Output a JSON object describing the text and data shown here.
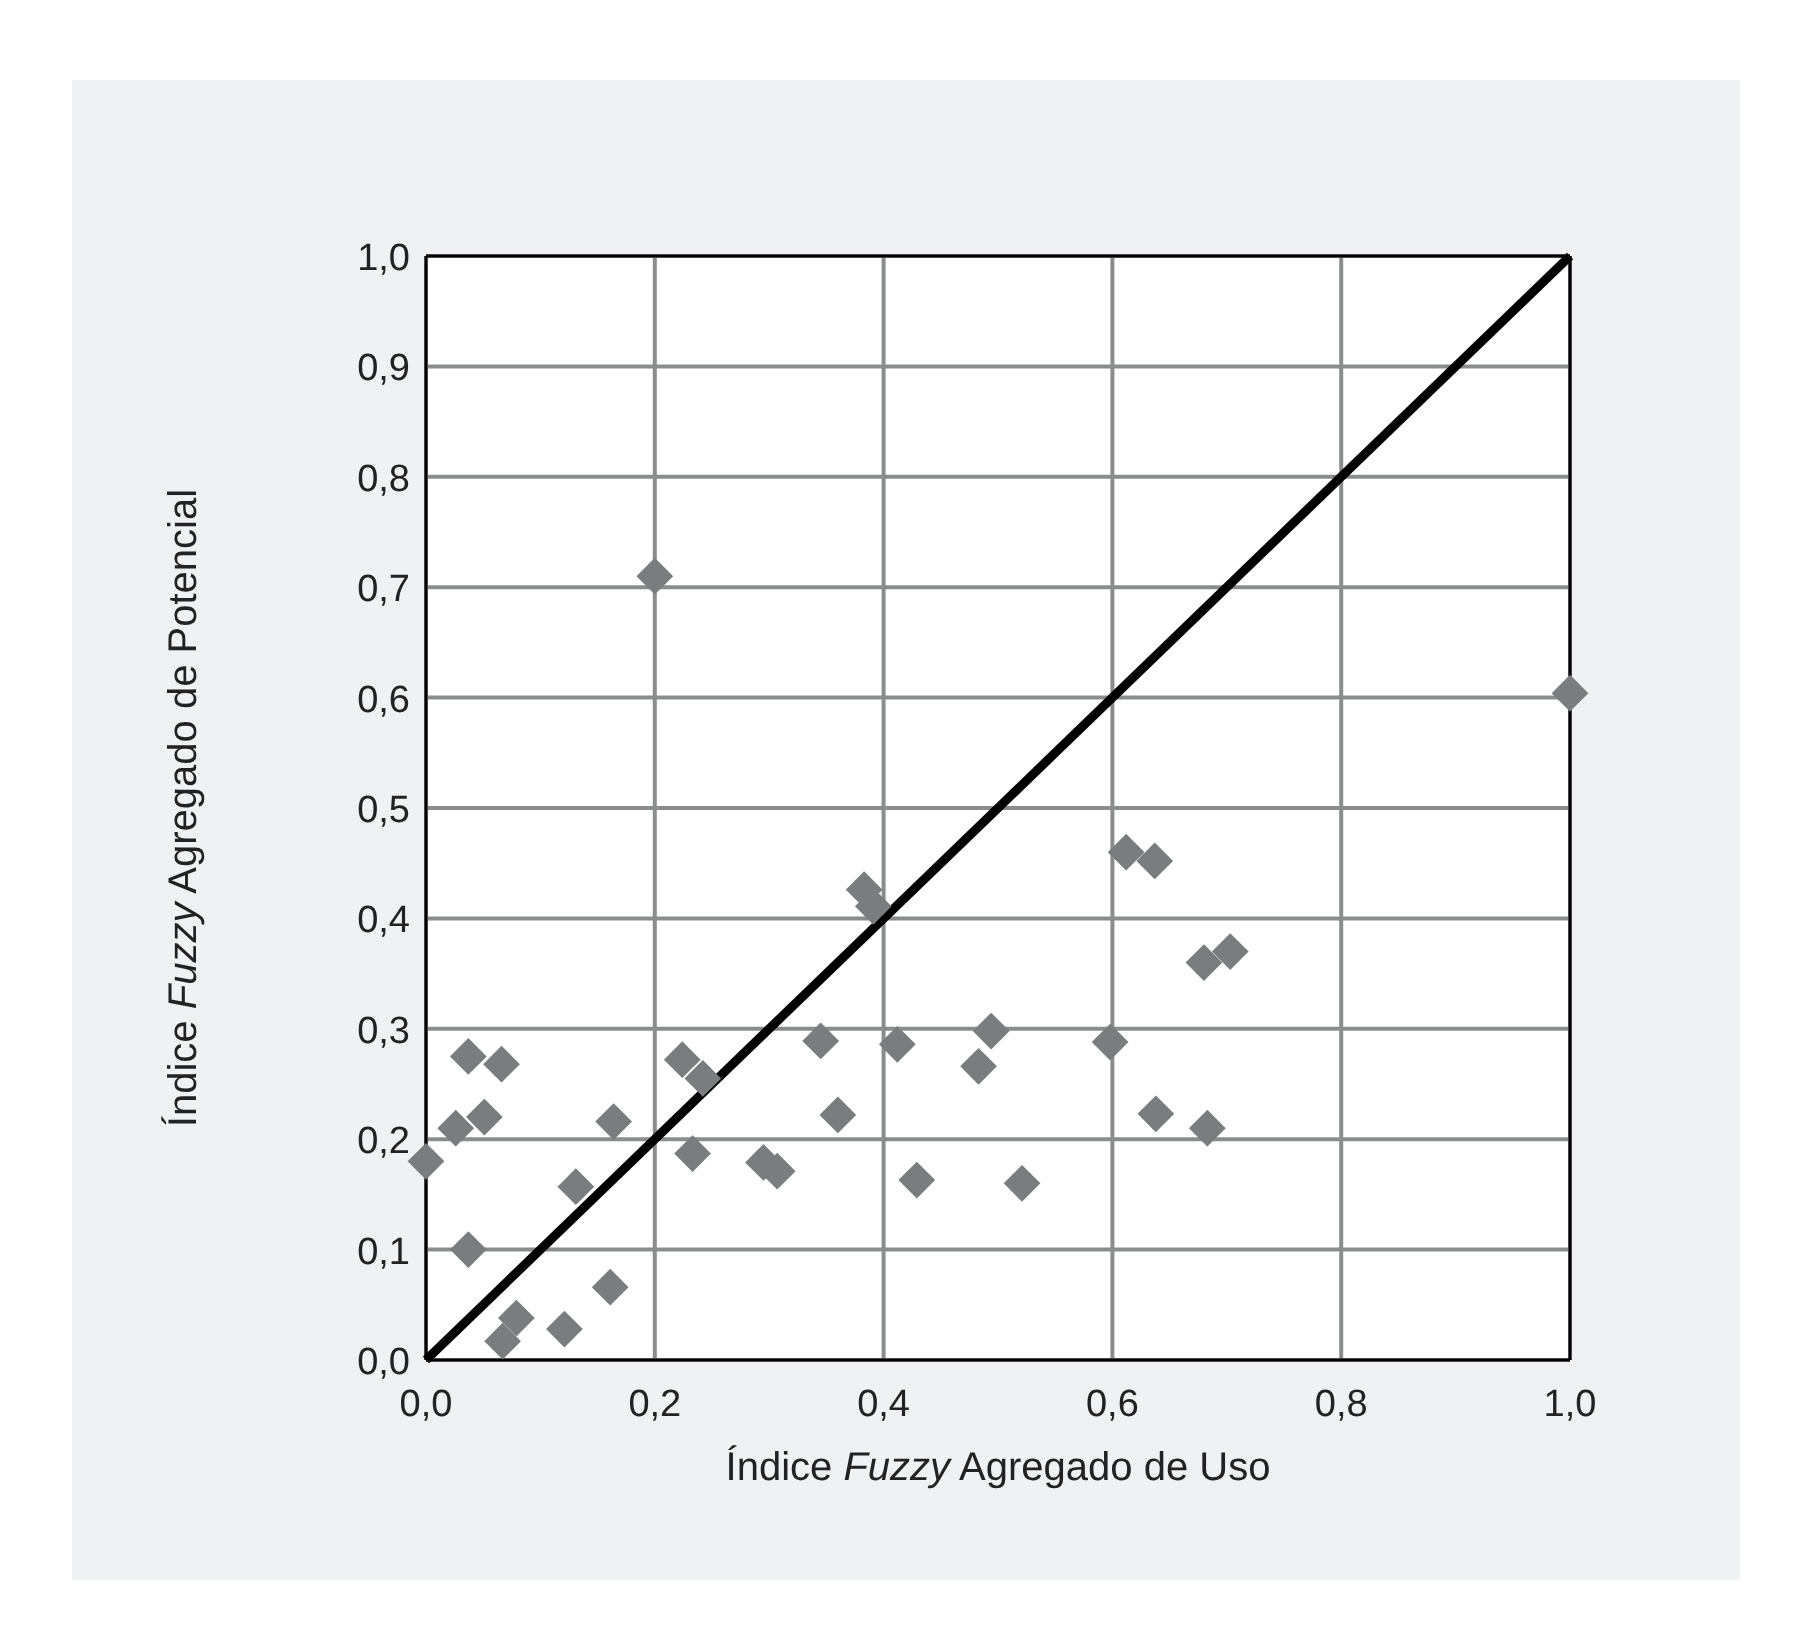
{
  "chart_data": {
    "type": "scatter",
    "xlabel": "Índice Fuzzy Agregado de Uso",
    "ylabel": "Índice Fuzzy Agregado de Potencial",
    "xlim": [
      0,
      1
    ],
    "ylim": [
      0,
      1
    ],
    "xticks": [
      {
        "value": 0,
        "label": "0,0"
      },
      {
        "value": 0.2,
        "label": "0,2"
      },
      {
        "value": 0.4,
        "label": "0,4"
      },
      {
        "value": 0.6,
        "label": "0,6"
      },
      {
        "value": 0.8,
        "label": "0,8"
      },
      {
        "value": 1,
        "label": "1,0"
      }
    ],
    "yticks": [
      {
        "value": 0,
        "label": "0,0"
      },
      {
        "value": 0.1,
        "label": "0,1"
      },
      {
        "value": 0.2,
        "label": "0,2"
      },
      {
        "value": 0.3,
        "label": "0,3"
      },
      {
        "value": 0.4,
        "label": "0,4"
      },
      {
        "value": 0.5,
        "label": "0,5"
      },
      {
        "value": 0.6,
        "label": "0,6"
      },
      {
        "value": 0.7,
        "label": "0,7"
      },
      {
        "value": 0.8,
        "label": "0,8"
      },
      {
        "value": 0.9,
        "label": "0,9"
      },
      {
        "value": 1,
        "label": "1,0"
      }
    ],
    "grid": true,
    "marker": "diamond",
    "series": [
      {
        "color": "#7a7d7e",
        "x": [
          0,
          0.026,
          0.051,
          0.037,
          0.066,
          0.037,
          0.131,
          0.164,
          0.161,
          0.079,
          0.067,
          0.121,
          0.224,
          0.242,
          0.233,
          0.295,
          0.307,
          0.2,
          0.383,
          0.391,
          0.345,
          0.412,
          0.494,
          0.483,
          0.598,
          0.36,
          0.429,
          0.521,
          0.612,
          0.637,
          0.68,
          0.703,
          0.638,
          0.683,
          1.0
        ],
        "values": [
          0.18,
          0.21,
          0.22,
          0.275,
          0.268,
          0.1,
          0.157,
          0.216,
          0.066,
          0.038,
          0.017,
          0.028,
          0.272,
          0.255,
          0.187,
          0.179,
          0.171,
          0.71,
          0.426,
          0.411,
          0.289,
          0.286,
          0.298,
          0.266,
          0.288,
          0.222,
          0.163,
          0.16,
          0.46,
          0.452,
          0.36,
          0.37,
          0.223,
          0.21,
          0.604
        ]
      },
      {
        "type": "line",
        "color": "#000000",
        "x": [
          0,
          1
        ],
        "values": [
          0,
          1
        ],
        "marker": "none",
        "line_style": "solid"
      }
    ]
  }
}
